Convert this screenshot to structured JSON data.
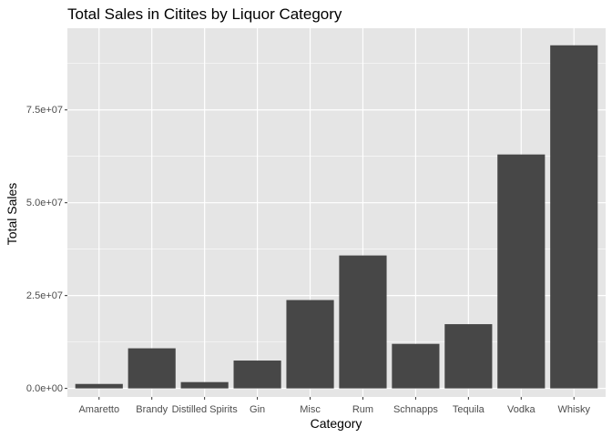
{
  "chart_data": {
    "type": "bar",
    "title": "Total Sales in Citites by Liquor Category",
    "xlabel": "Category",
    "ylabel": "Total Sales",
    "categories": [
      "Amaretto",
      "Brandy",
      "Distilled Spirits",
      "Gin",
      "Misc",
      "Rum",
      "Schnapps",
      "Tequila",
      "Vodka",
      "Whisky"
    ],
    "values": [
      1200000,
      10800000,
      1700000,
      7500000,
      23800000,
      35800000,
      12000000,
      17300000,
      63000000,
      92400000
    ],
    "ylim": [
      -2300000,
      97000000
    ],
    "yticks": [
      0,
      25000000,
      50000000,
      75000000
    ],
    "ytick_labels": [
      "0.0e+00",
      "2.5e+07",
      "5.0e+07",
      "7.5e+07"
    ],
    "grid": true,
    "bar_color": "#474747",
    "panel_background": "#e5e5e5",
    "grid_color": "#ffffff"
  }
}
